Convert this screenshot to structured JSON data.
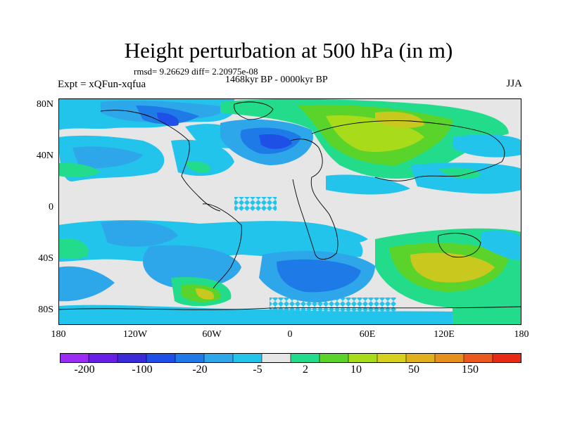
{
  "title": "Height perturbation at 500 hPa (in m)",
  "stats": "rmsd= 9.26629 diff= 2.20975e-08",
  "subtitle": "1468kyr BP - 0000kyr BP",
  "expt": "Expt = xQFun-xqfua",
  "season": "JJA",
  "lat_labels": [
    "80N",
    "40N",
    "0",
    "40S",
    "80S"
  ],
  "lon_labels": [
    "180",
    "120W",
    "60W",
    "0",
    "60E",
    "120E",
    "180"
  ],
  "colorbar": {
    "labels": [
      "-200",
      "-100",
      "-20",
      "-5",
      "2",
      "10",
      "50",
      "150"
    ],
    "colors": [
      "#9a2cf4",
      "#6a1fe6",
      "#3a2ad8",
      "#1e4fe6",
      "#1e7ae6",
      "#2ea6ea",
      "#22c4ec",
      "#e6e6e6",
      "#22dc8c",
      "#5ad42a",
      "#a8dc1a",
      "#d6d01e",
      "#e0b01e",
      "#e6901e",
      "#ea5a1e",
      "#e62a14"
    ]
  },
  "map_colors": {
    "neutral": "#e6e6e6",
    "cyan": "#22c4ec",
    "mid_blue": "#2ea6ea",
    "blue": "#1e7ae6",
    "dark_blue": "#1e4fe6",
    "teal_green": "#22dc8c",
    "green": "#5ad42a",
    "yellow_green": "#a8dc1a",
    "olive": "#c8c81e"
  }
}
